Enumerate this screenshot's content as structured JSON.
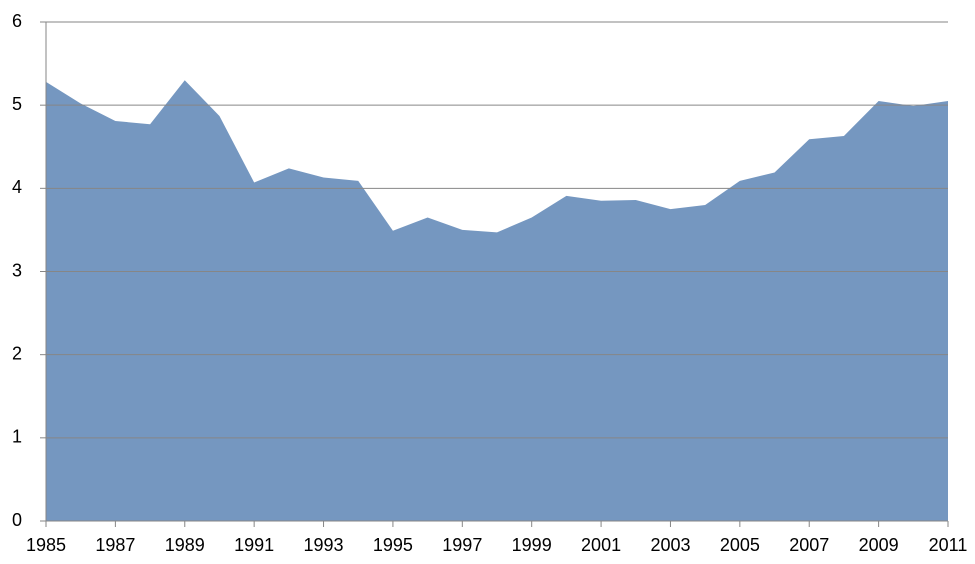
{
  "chart_data": {
    "type": "area",
    "x": [
      1985,
      1986,
      1987,
      1988,
      1989,
      1990,
      1991,
      1992,
      1993,
      1994,
      1995,
      1996,
      1997,
      1998,
      1999,
      2000,
      2001,
      2002,
      2003,
      2004,
      2005,
      2006,
      2007,
      2008,
      2009,
      2010,
      2011
    ],
    "values": [
      5.28,
      5.02,
      4.81,
      4.77,
      5.3,
      4.87,
      4.07,
      4.24,
      4.13,
      4.09,
      3.49,
      3.65,
      3.5,
      3.47,
      3.65,
      3.91,
      3.85,
      3.86,
      3.75,
      3.8,
      4.09,
      4.19,
      4.59,
      4.63,
      5.05,
      4.99,
      5.05
    ],
    "color": "#7597c0",
    "xlim": [
      1985,
      2011
    ],
    "xticks": [
      1985,
      1987,
      1989,
      1991,
      1993,
      1995,
      1997,
      1999,
      2001,
      2003,
      2005,
      2007,
      2009,
      2011
    ],
    "ylim": [
      0,
      6
    ],
    "yticks": [
      0,
      1,
      2,
      3,
      4,
      5,
      6
    ],
    "grid": true
  }
}
